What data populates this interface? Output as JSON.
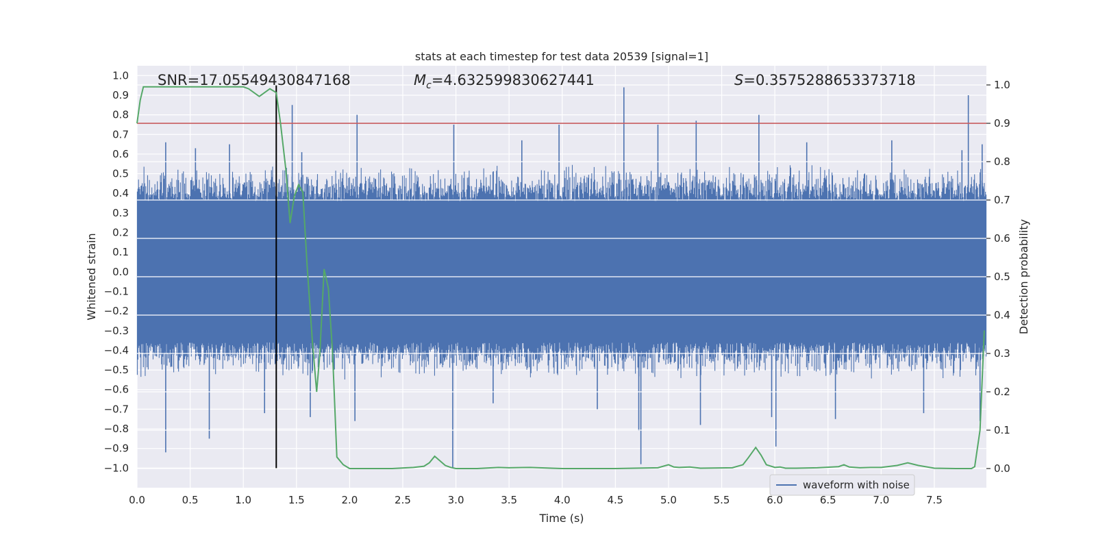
{
  "chart_data": {
    "type": "line",
    "title": "stats at each timestep for test data 20539 [signal=1]",
    "xlabel": "Time (s)",
    "ylabel": "Whitened strain",
    "y2label": "Detection probability",
    "xlim": [
      0.0,
      7.99
    ],
    "ylim": [
      -1.1,
      1.05
    ],
    "y2lim": [
      -0.05,
      1.05
    ],
    "xticks": [
      0.0,
      0.5,
      1.0,
      1.5,
      2.0,
      2.5,
      3.0,
      3.5,
      4.0,
      4.5,
      5.0,
      5.5,
      6.0,
      6.5,
      7.0,
      7.5
    ],
    "xtick_labels": [
      "0.0",
      "0.5",
      "1.0",
      "1.5",
      "2.0",
      "2.5",
      "3.0",
      "3.5",
      "4.0",
      "4.5",
      "5.0",
      "5.5",
      "6.0",
      "6.5",
      "7.0",
      "7.5"
    ],
    "yticks": [
      1.0,
      0.9,
      0.8,
      0.7,
      0.6,
      0.5,
      0.4,
      0.3,
      0.2,
      0.1,
      0.0,
      -0.1,
      -0.2,
      -0.3,
      -0.4,
      -0.5,
      -0.6,
      -0.7,
      -0.8,
      -0.9,
      -1.0
    ],
    "ytick_labels": [
      "1.0",
      "0.9",
      "0.8",
      "0.7",
      "0.6",
      "0.5",
      "0.4",
      "0.3",
      "0.2",
      "0.1",
      "0.0",
      "−0.1",
      "−0.2",
      "−0.3",
      "−0.4",
      "−0.5",
      "−0.6",
      "−0.7",
      "−0.8",
      "−0.9",
      "−1.0"
    ],
    "y2ticks": [
      1.0,
      0.9,
      0.8,
      0.7,
      0.6,
      0.5,
      0.4,
      0.3,
      0.2,
      0.1,
      0.0
    ],
    "y2tick_labels": [
      "1.0",
      "0.9",
      "0.8",
      "0.7",
      "0.6",
      "0.5",
      "0.4",
      "0.3",
      "0.2",
      "0.1",
      "0.0"
    ],
    "annotations": {
      "snr": "SNR=17.05549430847168",
      "mc_symbol": "M",
      "mc_sub": "c",
      "mc_value": "=4.632599830627441",
      "s_symbol": "S",
      "s_value": "=0.3575288653373718"
    },
    "legend": {
      "label": "waveform with noise",
      "position": "lower-right"
    },
    "threshold": {
      "value": 0.9,
      "axis": "y2",
      "color": "#c44e52"
    },
    "marker_line": {
      "x": 1.31,
      "y_from": -1.0,
      "y_to": 0.95,
      "color": "#000000"
    },
    "waveform": {
      "name": "waveform with noise",
      "color": "#4c72b0",
      "n": 1400,
      "core_amp": 0.36,
      "typical_peak": 0.55,
      "spikes_up": [
        [
          0.27,
          0.66
        ],
        [
          0.55,
          0.63
        ],
        [
          0.87,
          0.65
        ],
        [
          1.46,
          0.85
        ],
        [
          1.55,
          0.61
        ],
        [
          2.07,
          0.8
        ],
        [
          2.98,
          0.75
        ],
        [
          3.62,
          0.67
        ],
        [
          3.97,
          0.75
        ],
        [
          4.58,
          0.94
        ],
        [
          4.9,
          0.75
        ],
        [
          5.26,
          0.77
        ],
        [
          5.85,
          0.8
        ],
        [
          6.3,
          0.66
        ],
        [
          7.1,
          0.67
        ],
        [
          7.76,
          0.62
        ],
        [
          7.82,
          0.9
        ],
        [
          7.95,
          0.65
        ]
      ],
      "spikes_down": [
        [
          0.27,
          -0.92
        ],
        [
          0.68,
          -0.85
        ],
        [
          1.2,
          -0.72
        ],
        [
          1.63,
          -0.74
        ],
        [
          2.05,
          -0.76
        ],
        [
          2.97,
          -1.0
        ],
        [
          3.35,
          -0.67
        ],
        [
          4.33,
          -0.7
        ],
        [
          4.72,
          -0.81
        ],
        [
          4.74,
          -0.98
        ],
        [
          5.3,
          -0.78
        ],
        [
          5.97,
          -0.74
        ],
        [
          6.01,
          -0.89
        ],
        [
          6.57,
          -0.75
        ],
        [
          7.4,
          -0.72
        ],
        [
          7.93,
          -0.76
        ]
      ]
    },
    "probability": {
      "name": "detection probability",
      "color": "#55a868",
      "x": [
        0.0,
        0.03,
        0.06,
        0.1,
        0.2,
        0.4,
        0.6,
        0.8,
        1.0,
        1.05,
        1.1,
        1.15,
        1.2,
        1.25,
        1.28,
        1.31,
        1.35,
        1.4,
        1.44,
        1.48,
        1.52,
        1.56,
        1.6,
        1.65,
        1.69,
        1.72,
        1.76,
        1.8,
        1.84,
        1.88,
        1.94,
        2.0,
        2.1,
        2.4,
        2.6,
        2.7,
        2.75,
        2.8,
        2.85,
        2.9,
        2.95,
        3.0,
        3.2,
        3.4,
        3.5,
        3.7,
        3.9,
        4.0,
        4.5,
        4.9,
        5.0,
        5.05,
        5.1,
        5.2,
        5.3,
        5.6,
        5.7,
        5.75,
        5.82,
        5.87,
        5.92,
        6.0,
        6.05,
        6.1,
        6.2,
        6.4,
        6.6,
        6.65,
        6.7,
        6.8,
        6.9,
        7.0,
        7.15,
        7.25,
        7.35,
        7.5,
        7.7,
        7.85,
        7.88,
        7.93,
        7.97
      ],
      "y": [
        0.9,
        0.96,
        0.995,
        0.995,
        0.995,
        0.995,
        0.995,
        0.995,
        0.995,
        0.99,
        0.98,
        0.97,
        0.98,
        0.99,
        0.985,
        0.98,
        0.9,
        0.78,
        0.64,
        0.71,
        0.74,
        0.72,
        0.53,
        0.33,
        0.2,
        0.3,
        0.52,
        0.47,
        0.3,
        0.03,
        0.01,
        0.0,
        0.0,
        0.0,
        0.003,
        0.006,
        0.015,
        0.032,
        0.02,
        0.008,
        0.003,
        0.0,
        0.0,
        0.003,
        0.002,
        0.003,
        0.001,
        0.0,
        0.0,
        0.002,
        0.01,
        0.004,
        0.003,
        0.004,
        0.001,
        0.002,
        0.01,
        0.028,
        0.055,
        0.035,
        0.01,
        0.003,
        0.004,
        0.001,
        0.001,
        0.002,
        0.005,
        0.01,
        0.004,
        0.002,
        0.003,
        0.003,
        0.008,
        0.015,
        0.008,
        0.001,
        0.0,
        0.0,
        0.005,
        0.1,
        0.36
      ]
    }
  }
}
